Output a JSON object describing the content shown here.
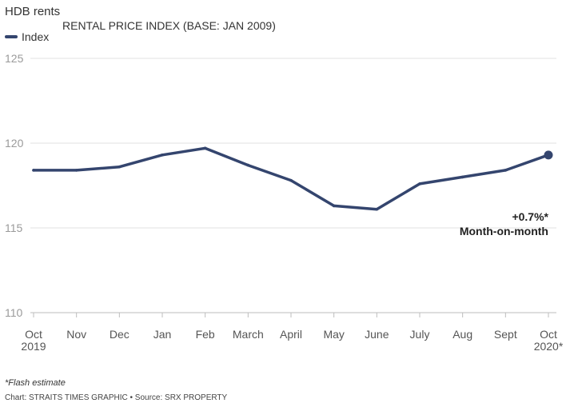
{
  "chart_data": {
    "type": "line",
    "title": "HDB rents",
    "subtitle": "RENTAL PRICE INDEX (BASE: JAN 2009)",
    "legend": [
      {
        "label": "Index",
        "color": "#34456e"
      }
    ],
    "categories": [
      [
        "Oct",
        "2019"
      ],
      [
        "Nov",
        ""
      ],
      [
        "Dec",
        ""
      ],
      [
        "Jan",
        ""
      ],
      [
        "Feb",
        ""
      ],
      [
        "March",
        ""
      ],
      [
        "April",
        ""
      ],
      [
        "May",
        ""
      ],
      [
        "June",
        ""
      ],
      [
        "July",
        ""
      ],
      [
        "Aug",
        ""
      ],
      [
        "Sept",
        ""
      ],
      [
        "Oct",
        "2020*"
      ]
    ],
    "series": [
      {
        "name": "Index",
        "color": "#34456e",
        "values": [
          118.4,
          118.4,
          118.6,
          119.3,
          119.7,
          118.7,
          117.8,
          116.3,
          116.1,
          117.6,
          118.0,
          118.4,
          119.3
        ]
      }
    ],
    "ylim": [
      110,
      125
    ],
    "yticks": [
      "110",
      "115",
      "120",
      "125"
    ],
    "annotation": {
      "line1": "+0.7%*",
      "line2": "Month-on-month"
    },
    "footnote": "*Flash estimate",
    "source": "Chart: STRAITS TIMES GRAPHIC • Source: SRX PROPERTY"
  }
}
